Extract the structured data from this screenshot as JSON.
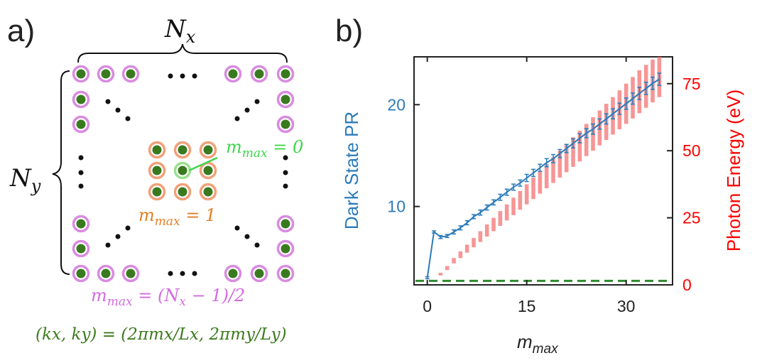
{
  "panel_a": {
    "label": "a)",
    "nx_label": "N",
    "nx_sub": "x",
    "ny_label": "N",
    "ny_sub": "y",
    "mmax0_label": "m",
    "mmax0_sub": "max",
    "mmax0_rhs": " = 0",
    "mmax1_label": "m",
    "mmax1_sub": "max",
    "mmax1_rhs": " = 1",
    "mmax_edge_label": "m",
    "mmax_edge_sub": "max",
    "mmax_edge_rhs": " = (N",
    "mmax_edge_sub2": "x",
    "mmax_edge_tail": " − 1)/2",
    "k_formula": "(kx, ky) = (2πmx/Lx, 2πmy/Ly)",
    "colors": {
      "dot": "#3a7a1f",
      "edge_ring": "#d98be0",
      "inner_ring": "#f2a07a",
      "center_ring": "#9be08f",
      "mmax0": "#3fd64a",
      "mmax1": "#e67e22",
      "mmax_edge": "#d36be0",
      "formula": "#3d7a1f"
    }
  },
  "chart_data": {
    "label": "b)",
    "type": "line",
    "xlabel": "m",
    "xlabel_sub": "max",
    "ylabel_left": "Dark State PR",
    "ylabel_right": "Photon Energy (eV)",
    "xlim": [
      -2,
      37
    ],
    "ylim_left": [
      2.3,
      24.7
    ],
    "ylim_right": [
      0,
      85
    ],
    "xticks": [
      0,
      15,
      30
    ],
    "yticks_left": [
      10,
      20
    ],
    "yticks_right": [
      0,
      25,
      50,
      75
    ],
    "colors": {
      "pr": "#2b7bba",
      "energy": "#f26d6d",
      "baseline": "#2e8b2e",
      "right_axis": "#ff0000"
    },
    "pr_series": {
      "name": "Dark State PR",
      "x": [
        0,
        1,
        2,
        3,
        4,
        5,
        6,
        7,
        8,
        9,
        10,
        11,
        12,
        13,
        14,
        15,
        16,
        17,
        18,
        19,
        20,
        21,
        22,
        23,
        24,
        25,
        26,
        27,
        28,
        29,
        30,
        31,
        32,
        33,
        34,
        35
      ],
      "y": [
        3.0,
        7.5,
        7.0,
        7.1,
        7.5,
        7.9,
        8.4,
        9.0,
        9.4,
        9.9,
        10.4,
        10.9,
        11.4,
        11.9,
        12.3,
        12.8,
        13.3,
        13.8,
        14.3,
        14.7,
        15.2,
        15.7,
        16.2,
        16.7,
        17.2,
        17.6,
        18.1,
        18.6,
        19.1,
        19.6,
        20.1,
        20.6,
        21.1,
        21.6,
        22.1,
        22.5
      ],
      "err": [
        0.1,
        0.1,
        0.15,
        0.15,
        0.2,
        0.2,
        0.2,
        0.2,
        0.25,
        0.25,
        0.25,
        0.3,
        0.3,
        0.3,
        0.3,
        0.35,
        0.35,
        0.35,
        0.4,
        0.4,
        0.4,
        0.4,
        0.45,
        0.45,
        0.45,
        0.5,
        0.5,
        0.5,
        0.5,
        0.55,
        0.55,
        0.55,
        0.6,
        0.6,
        0.6,
        0.6
      ]
    },
    "energy_series": {
      "name": "Photon Energy (eV)",
      "x": [
        2,
        3,
        4,
        5,
        6,
        7,
        8,
        9,
        10,
        11,
        12,
        13,
        14,
        15,
        16,
        17,
        18,
        19,
        20,
        21,
        22,
        23,
        24,
        25,
        26,
        27,
        28,
        29,
        30,
        31,
        32,
        33,
        34,
        35
      ],
      "low": [
        3.5,
        5.5,
        8,
        10,
        12,
        14,
        16,
        18,
        20,
        22,
        24,
        26,
        28,
        30,
        32,
        34,
        36,
        38,
        40,
        42,
        44,
        46,
        48,
        50,
        52,
        54,
        56,
        58,
        60,
        62,
        64,
        66,
        68,
        70
      ],
      "high": [
        4.5,
        7,
        10,
        12.5,
        15,
        17.5,
        20,
        22.5,
        25,
        27.5,
        30,
        32.5,
        35,
        37.5,
        40,
        42.5,
        45,
        47.5,
        50,
        52.5,
        55,
        57.5,
        60,
        62.5,
        65,
        67.5,
        70,
        72.5,
        75,
        77.5,
        80,
        82,
        84,
        87
      ]
    },
    "baseline_eV": 1.5
  }
}
